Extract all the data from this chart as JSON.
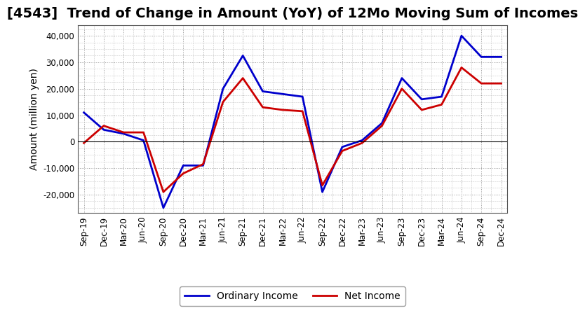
{
  "title": "[4543]  Trend of Change in Amount (YoY) of 12Mo Moving Sum of Incomes",
  "ylabel": "Amount (million yen)",
  "labels": [
    "Sep-19",
    "Dec-19",
    "Mar-20",
    "Jun-20",
    "Sep-20",
    "Dec-20",
    "Mar-21",
    "Jun-21",
    "Sep-21",
    "Dec-21",
    "Mar-22",
    "Jun-22",
    "Sep-22",
    "Dec-22",
    "Mar-23",
    "Jun-23",
    "Sep-23",
    "Dec-23",
    "Mar-24",
    "Jun-24",
    "Sep-24",
    "Dec-24"
  ],
  "ordinary_income": [
    11000,
    4500,
    3000,
    500,
    -25000,
    -9000,
    -9000,
    20000,
    32500,
    19000,
    18000,
    17000,
    -19000,
    -2000,
    500,
    7000,
    24000,
    16000,
    17000,
    40000,
    32000,
    32000
  ],
  "net_income": [
    -500,
    6000,
    3500,
    3500,
    -19000,
    -12000,
    -8500,
    15000,
    24000,
    13000,
    12000,
    11500,
    -16500,
    -3500,
    -500,
    6000,
    20000,
    12000,
    14000,
    28000,
    22000,
    22000
  ],
  "ordinary_color": "#0000cc",
  "net_color": "#cc0000",
  "background_color": "#ffffff",
  "grid_color": "#999999",
  "ylim": [
    -27000,
    44000
  ],
  "yticks": [
    -20000,
    -10000,
    0,
    10000,
    20000,
    30000,
    40000
  ],
  "line_width": 2.0,
  "title_fontsize": 14,
  "axis_fontsize": 10,
  "tick_fontsize": 8.5
}
